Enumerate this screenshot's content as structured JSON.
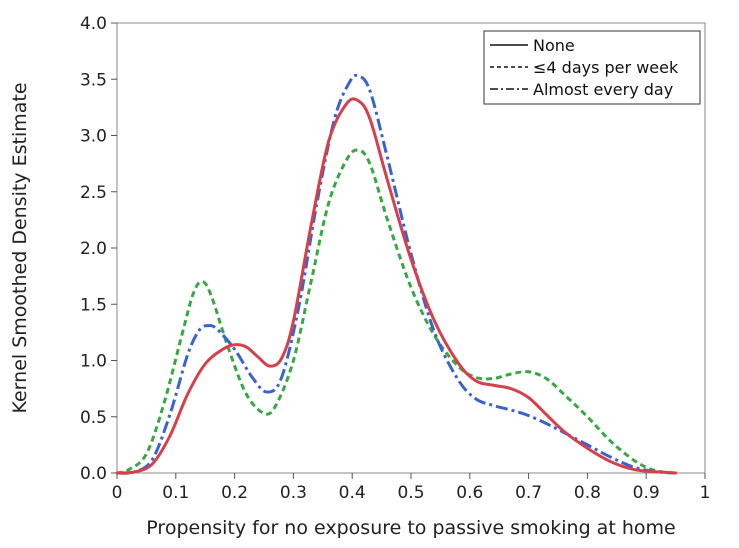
{
  "chart_data": {
    "type": "line",
    "title": "",
    "xlabel": "Propensity for no exposure to passive smoking at home",
    "ylabel": "Kernel Smoothed Density Estimate",
    "xlim": [
      0,
      1
    ],
    "ylim": [
      0,
      4
    ],
    "x_ticks": [
      "0",
      "0.1",
      "0.2",
      "0.3",
      "0.4",
      "0.5",
      "0.6",
      "0.7",
      "0.8",
      "0.9",
      "1"
    ],
    "y_ticks": [
      "0.0",
      "0.5",
      "1.0",
      "1.5",
      "2.0",
      "2.5",
      "3.0",
      "3.5",
      "4.0"
    ],
    "legend_position": "top-right",
    "series": [
      {
        "name": "None",
        "color": "#d7404a",
        "style": "solid",
        "points": [
          [
            0.0,
            0.0
          ],
          [
            0.03,
            0.01
          ],
          [
            0.06,
            0.08
          ],
          [
            0.09,
            0.33
          ],
          [
            0.12,
            0.7
          ],
          [
            0.15,
            0.97
          ],
          [
            0.18,
            1.1
          ],
          [
            0.2,
            1.14
          ],
          [
            0.22,
            1.12
          ],
          [
            0.24,
            1.03
          ],
          [
            0.26,
            0.95
          ],
          [
            0.28,
            1.02
          ],
          [
            0.3,
            1.35
          ],
          [
            0.33,
            2.2
          ],
          [
            0.36,
            2.95
          ],
          [
            0.39,
            3.28
          ],
          [
            0.41,
            3.31
          ],
          [
            0.43,
            3.15
          ],
          [
            0.46,
            2.6
          ],
          [
            0.5,
            1.9
          ],
          [
            0.54,
            1.35
          ],
          [
            0.58,
            0.98
          ],
          [
            0.61,
            0.82
          ],
          [
            0.64,
            0.78
          ],
          [
            0.67,
            0.75
          ],
          [
            0.7,
            0.67
          ],
          [
            0.73,
            0.52
          ],
          [
            0.76,
            0.37
          ],
          [
            0.8,
            0.22
          ],
          [
            0.84,
            0.1
          ],
          [
            0.88,
            0.03
          ],
          [
            0.92,
            0.01
          ],
          [
            0.95,
            0.0
          ]
        ]
      },
      {
        "name": "≤4 days per week",
        "color": "#38a844",
        "style": "dashed",
        "points": [
          [
            0.0,
            0.0
          ],
          [
            0.02,
            0.03
          ],
          [
            0.05,
            0.17
          ],
          [
            0.08,
            0.62
          ],
          [
            0.11,
            1.22
          ],
          [
            0.13,
            1.6
          ],
          [
            0.145,
            1.7
          ],
          [
            0.16,
            1.58
          ],
          [
            0.19,
            1.1
          ],
          [
            0.22,
            0.7
          ],
          [
            0.25,
            0.53
          ],
          [
            0.27,
            0.6
          ],
          [
            0.3,
            1.0
          ],
          [
            0.33,
            1.7
          ],
          [
            0.36,
            2.4
          ],
          [
            0.39,
            2.78
          ],
          [
            0.41,
            2.87
          ],
          [
            0.43,
            2.75
          ],
          [
            0.46,
            2.25
          ],
          [
            0.5,
            1.65
          ],
          [
            0.54,
            1.22
          ],
          [
            0.58,
            0.95
          ],
          [
            0.61,
            0.85
          ],
          [
            0.64,
            0.84
          ],
          [
            0.67,
            0.88
          ],
          [
            0.7,
            0.9
          ],
          [
            0.73,
            0.84
          ],
          [
            0.76,
            0.7
          ],
          [
            0.8,
            0.5
          ],
          [
            0.84,
            0.28
          ],
          [
            0.88,
            0.11
          ],
          [
            0.91,
            0.03
          ],
          [
            0.94,
            0.0
          ]
        ]
      },
      {
        "name": "Almost every day",
        "color": "#3a62d0",
        "style": "dashdot",
        "points": [
          [
            0.0,
            0.0
          ],
          [
            0.03,
            0.01
          ],
          [
            0.06,
            0.12
          ],
          [
            0.09,
            0.52
          ],
          [
            0.12,
            1.05
          ],
          [
            0.14,
            1.27
          ],
          [
            0.155,
            1.31
          ],
          [
            0.17,
            1.28
          ],
          [
            0.2,
            1.1
          ],
          [
            0.23,
            0.85
          ],
          [
            0.255,
            0.72
          ],
          [
            0.28,
            0.85
          ],
          [
            0.31,
            1.5
          ],
          [
            0.34,
            2.4
          ],
          [
            0.37,
            3.15
          ],
          [
            0.395,
            3.47
          ],
          [
            0.41,
            3.53
          ],
          [
            0.43,
            3.4
          ],
          [
            0.46,
            2.8
          ],
          [
            0.5,
            1.95
          ],
          [
            0.54,
            1.25
          ],
          [
            0.58,
            0.83
          ],
          [
            0.61,
            0.66
          ],
          [
            0.64,
            0.6
          ],
          [
            0.67,
            0.56
          ],
          [
            0.7,
            0.51
          ],
          [
            0.73,
            0.44
          ],
          [
            0.76,
            0.36
          ],
          [
            0.8,
            0.25
          ],
          [
            0.84,
            0.14
          ],
          [
            0.88,
            0.05
          ],
          [
            0.92,
            0.01
          ],
          [
            0.95,
            0.0
          ]
        ]
      }
    ]
  }
}
